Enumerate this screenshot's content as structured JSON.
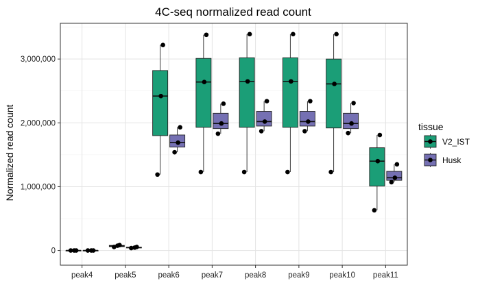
{
  "chart_data": {
    "type": "boxplot",
    "title": "4C-seq normalized read count",
    "xlabel": "",
    "ylabel": "Normalized read count",
    "ylim": [
      -230000,
      3560000
    ],
    "yticks": [
      0,
      1000000,
      2000000,
      3000000
    ],
    "ytick_labels": [
      "0",
      "1,000,000",
      "2,000,000",
      "3,000,000"
    ],
    "grid": true,
    "legend": {
      "title": "tissue",
      "position": "right"
    },
    "categories": [
      "peak4",
      "peak5",
      "peak6",
      "peak7",
      "peak8",
      "peak9",
      "peak10",
      "peak11"
    ],
    "series": [
      {
        "name": "V2_IST",
        "color": "#1b9e77",
        "boxes": [
          {
            "min": 0,
            "q1": 0,
            "median": 0,
            "q3": 0,
            "max": 0,
            "points": [
              0,
              0,
              0
            ]
          },
          {
            "min": 50000,
            "q1": 60000,
            "median": 70000,
            "q3": 80000,
            "max": 90000,
            "points": [
              55000,
              75000,
              85000
            ]
          },
          {
            "min": 1190000,
            "q1": 1800000,
            "median": 2420000,
            "q3": 2820000,
            "max": 3220000,
            "points": [
              1190000,
              2420000,
              3220000
            ]
          },
          {
            "min": 1230000,
            "q1": 1930000,
            "median": 2640000,
            "q3": 3010000,
            "max": 3380000,
            "points": [
              1230000,
              2640000,
              3380000
            ]
          },
          {
            "min": 1230000,
            "q1": 1930000,
            "median": 2650000,
            "q3": 3020000,
            "max": 3390000,
            "points": [
              1230000,
              2650000,
              3390000
            ]
          },
          {
            "min": 1230000,
            "q1": 1930000,
            "median": 2650000,
            "q3": 3020000,
            "max": 3390000,
            "points": [
              1230000,
              2650000,
              3390000
            ]
          },
          {
            "min": 1230000,
            "q1": 1920000,
            "median": 2610000,
            "q3": 3000000,
            "max": 3390000,
            "points": [
              1230000,
              2610000,
              3390000
            ]
          },
          {
            "min": 630000,
            "q1": 1010000,
            "median": 1400000,
            "q3": 1610000,
            "max": 1810000,
            "points": [
              630000,
              1400000,
              1810000
            ]
          }
        ]
      },
      {
        "name": "Husk",
        "color": "#7570b3",
        "boxes": [
          {
            "min": 0,
            "q1": 0,
            "median": 0,
            "q3": 0,
            "max": 0,
            "points": [
              0,
              0,
              0
            ]
          },
          {
            "min": 35000,
            "q1": 40000,
            "median": 45000,
            "q3": 52000,
            "max": 58000,
            "points": [
              38000,
              45000,
              55000
            ]
          },
          {
            "min": 1540000,
            "q1": 1620000,
            "median": 1690000,
            "q3": 1810000,
            "max": 1930000,
            "points": [
              1540000,
              1690000,
              1930000
            ]
          },
          {
            "min": 1830000,
            "q1": 1910000,
            "median": 1990000,
            "q3": 2150000,
            "max": 2300000,
            "points": [
              1830000,
              1990000,
              2300000
            ]
          },
          {
            "min": 1870000,
            "q1": 1950000,
            "median": 2020000,
            "q3": 2180000,
            "max": 2340000,
            "points": [
              1870000,
              2020000,
              2340000
            ]
          },
          {
            "min": 1870000,
            "q1": 1950000,
            "median": 2020000,
            "q3": 2180000,
            "max": 2340000,
            "points": [
              1870000,
              2020000,
              2340000
            ]
          },
          {
            "min": 1840000,
            "q1": 1910000,
            "median": 1990000,
            "q3": 2150000,
            "max": 2310000,
            "points": [
              1840000,
              1990000,
              2310000
            ]
          },
          {
            "min": 1070000,
            "q1": 1100000,
            "median": 1140000,
            "q3": 1240000,
            "max": 1350000,
            "points": [
              1070000,
              1140000,
              1350000
            ]
          }
        ]
      }
    ]
  }
}
